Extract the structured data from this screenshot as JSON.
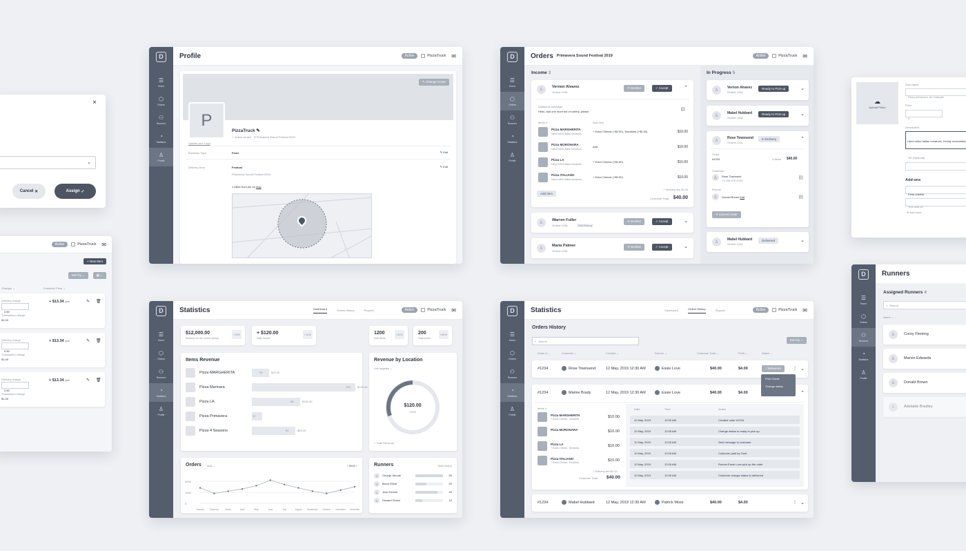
{
  "common": {
    "active": "Active",
    "brand": "PizzaTruck"
  },
  "assign_dialog": {
    "cancel": "Cancel",
    "assign": "Assign"
  },
  "menu_panel": {
    "new_item": "+ New Item",
    "sort": "Sort by",
    "col_charges": "Charges",
    "col_price": "Customer Price",
    "rows": [
      {
        "label": "Delivery charge",
        "value": "0.50",
        "price": "+ $13.34",
        "unit": "/pie",
        "txn": "Transaction charge",
        "txn_val": "$1.00"
      },
      {
        "label": "Delivery charge",
        "value": "0.50",
        "price": "+ $13.34",
        "unit": "/pie",
        "txn": "Transaction charge",
        "txn_val": "$1.00"
      },
      {
        "label": "Delivery charge",
        "value": "0.50",
        "price": "+ $13.34",
        "unit": "/pie",
        "txn": "Transaction charge",
        "txn_val": "$1.00"
      }
    ]
  },
  "profile": {
    "title": "Profile",
    "change_cover": "Change Cover",
    "avatar_letter": "P",
    "update_logo": "Update your Logo",
    "name": "PizzaTruck",
    "status": "Active vendor",
    "event": "Primavera Sound Festival 2019",
    "business_type_label": "Business Type",
    "business_type": "Food",
    "delivery_label": "Delivery Area",
    "delivery": "Festival",
    "delivery_sub": "Primavera Sound Festival 2019",
    "edit": "Edit",
    "pin_prefix": "1 Miles from pin on",
    "pin_link": "map"
  },
  "orders": {
    "title": "Orders",
    "event": "Primavera Sound Festival 2019",
    "income": "Income",
    "income_count": "3",
    "in_progress": "In Progress",
    "ip_count": "5",
    "decline": "Decline",
    "accept": "Accept",
    "add_item": "Add Item",
    "delivery_fee": "+ Delivery fee $1.00",
    "customer_total": "Customer Total",
    "total": "$40.00",
    "msg_label": "Additional message",
    "message": "Hello, add one more set of cutlery, please",
    "items_label": "Items 4",
    "addons_label": "Add-Ons",
    "order_no": "Order# 1234",
    "self_pickup": "Self Pickup",
    "income_orders": [
      {
        "name": "Vernon Alvarez"
      },
      {
        "name": "Warren Fuller"
      },
      {
        "name": "Maria Palmer"
      }
    ],
    "items": [
      {
        "name": "Pizza MARGHERITA",
        "desc": "Hand rolled Italian tomatoes..",
        "addon": "+ Extra Cheese (+$0.50), Tomatoes (+$0.50)",
        "price": "$10.00"
      },
      {
        "name": "Pizza MORONARA",
        "desc": "Hand rolled Italian tomatoes..",
        "addon": "Add",
        "price": "$10.00"
      },
      {
        "name": "Pizza LA",
        "desc": "Hand rolled Italian tomatoes..",
        "addon": "+ Extra Cheese (+$0.50)",
        "price": "$10.00"
      },
      {
        "name": "Pizza ITALIANO",
        "desc": "Hand rolled Italian tomatoes..",
        "addon": "+ Extra Cheese (+$0.50)",
        "price": "$10.00"
      }
    ],
    "progress": [
      {
        "name": "Vernon Alvarez",
        "action": "Ready to Pick-up"
      },
      {
        "name": "Mabel Hubbard",
        "action": "Ready to Pick-up"
      },
      {
        "name": "Rose Townsend",
        "action": "In Delivery"
      },
      {
        "name": "Mabel Hubbard",
        "action": "Delivered"
      }
    ],
    "detail": {
      "order_label": "Order",
      "order_no": "#1234",
      "items": "4 Items",
      "amount": "$40.00",
      "customer_label": "Customer",
      "customer": "Rose Townsend",
      "phone": "+1 234 476 4444",
      "runner_label": "Runner",
      "runner": "Donald Brown",
      "runner_edit": "Edit",
      "cancel": "Cancel Order"
    }
  },
  "item_editor": {
    "upload": "Upload Photo",
    "name_label": "Dish Name",
    "name_ph": "Pizza primavera, for example",
    "price_label": "Price",
    "price": "4",
    "desc_label": "Description",
    "desc": "Hand rolled Italian tomatoes, freshly mozzarella, green peppers, basil, extra virgin olive oil",
    "sd_label": "SD (Optional)",
    "addons_label": "Add-ons",
    "addon1": "Extra cheese",
    "addon2": "Your add-on",
    "add_more": "Add more"
  },
  "runners": {
    "title": "Runners",
    "assigned": "Assigned Runners",
    "count": "4",
    "search": "Search",
    "col": "Name",
    "list": [
      "Corey Fleming",
      "Marvin Edwards",
      "Donald Brown",
      "Adelaide Bradley"
    ]
  },
  "stats": {
    "title": "Statistics",
    "tabs": [
      "Dashboard",
      "Orders History",
      "Reports"
    ],
    "kpis": [
      {
        "value": "$12,000.00",
        "label": "Revenue for the current period",
        "delta": "+15%"
      },
      {
        "value": "+ $120.00",
        "label": "Daily Income",
        "delta": "+10%"
      },
      {
        "value": "1200",
        "label": "Sold Items",
        "delta": "+40%"
      },
      {
        "value": "200",
        "label": "Total orders",
        "delta": "+60%"
      }
    ],
    "items_revenue": "Items Revenue",
    "revenue_items": [
      {
        "name": "Pizza MARGHERITA",
        "qty": "20",
        "amount": "$20.00"
      },
      {
        "name": "Pizza Marinara",
        "qty": "120",
        "amount": "$120.00"
      },
      {
        "name": "Pizza LA",
        "qty": "56",
        "amount": "$120.00"
      },
      {
        "name": "Pizza Primavera",
        "qty": "12",
        "amount": ""
      },
      {
        "name": "Pizza 4 Seasons",
        "qty": "50",
        "amount": "$50.00"
      }
    ],
    "by_location": "Revenue by Location",
    "location": "Los Angeles",
    "donut_value": "$120.00",
    "donut_sub": "+10%",
    "legend": "Total Revenue",
    "orders_title": "Orders",
    "orders_filter": "Total",
    "year": "2019",
    "runners_title": "Runners",
    "runners_sub": "Total orders",
    "runners": [
      {
        "name": "George Woods",
        "value": "50"
      },
      {
        "name": "Bruce Elliott",
        "value": "20"
      },
      {
        "name": "Jean Dennis",
        "value": "40"
      },
      {
        "name": "Howard Simon",
        "value": "12"
      }
    ]
  },
  "chart_data": {
    "type": "line",
    "categories": [
      "January",
      "February",
      "March",
      "April",
      "May",
      "June",
      "July",
      "August",
      "September",
      "October",
      "November",
      "December"
    ],
    "values": [
      1400,
      900,
      1100,
      1300,
      1600,
      2100,
      1700,
      1400,
      1100,
      900,
      1200,
      1500
    ],
    "ylabels": [
      "2000",
      "1000",
      "0"
    ],
    "ylim": [
      0,
      2500
    ]
  },
  "history": {
    "title": "Statistics",
    "tabs": [
      "Dashboard",
      "Orders History",
      "Reports"
    ],
    "heading": "Orders History",
    "search": "Search",
    "sort": "Sort by",
    "cols": [
      "Order #",
      "Customer",
      "Created",
      "Runner",
      "Customer Total",
      "Profit",
      "Status"
    ],
    "rows": [
      {
        "no": "#1234",
        "customer": "Rose Townsend",
        "created": "12 May, 2019 12:30 AM",
        "runner": "Essie Love",
        "total": "$40.00",
        "profit": "$4.00",
        "status": "Delivered"
      },
      {
        "no": "#1234",
        "customer": "Mamie Brady",
        "created": "12 May, 2019 12:30 AM",
        "runner": "Essie Love",
        "total": "$40.00",
        "profit": "$4.00",
        "status": ""
      },
      {
        "no": "#1234",
        "customer": "Mabel Hubbard",
        "created": "12 May, 2019 12:30 AM",
        "runner": "Patrick Moss",
        "total": "$40.00",
        "profit": "$4.00",
        "status": ""
      }
    ],
    "menu": [
      "Print Check",
      "Change status"
    ],
    "items_label": "Items 4",
    "items": [
      {
        "name": "Pizza MARGHERITA",
        "sub": "+ Extra Cheese, Tomatoes",
        "price": "$10.00"
      },
      {
        "name": "Pizza MORONARA",
        "sub": "",
        "price": "$10.00"
      },
      {
        "name": "Pizza LA",
        "sub": "+ Extra Cheese, Tomatoes",
        "price": "$10.00"
      },
      {
        "name": "Pizza ITALIANO",
        "sub": "+ Extra Cheese, Tomatoes",
        "price": "$10.00"
      }
    ],
    "fee": "+ Delivery fee $1.00",
    "total_label": "Customer Total",
    "total": "$40.00",
    "log_cols": [
      "Date",
      "Time",
      "Action"
    ],
    "log": [
      {
        "d": "12 May, 2019",
        "t": "12:00 AM",
        "a": "Created order #1234"
      },
      {
        "d": "12 May, 2019",
        "t": "12:05 AM",
        "a": "Change status to ready to pick up"
      },
      {
        "d": "12 May, 2019",
        "t": "12:05 AM",
        "a": "Sent message to customer"
      },
      {
        "d": "12 May, 2019",
        "t": "12:05 AM",
        "a": "Customer paid by Card"
      },
      {
        "d": "12 May, 2019",
        "t": "12:05 AM",
        "a": "Runner Essie Love pick up the order"
      },
      {
        "d": "12 May, 2019",
        "t": "12:05 AM",
        "a": "Customer change status to delivered"
      }
    ]
  },
  "nav": {
    "items": [
      "Home",
      "Orders",
      "Runners",
      "Statistics",
      "Profile"
    ]
  }
}
